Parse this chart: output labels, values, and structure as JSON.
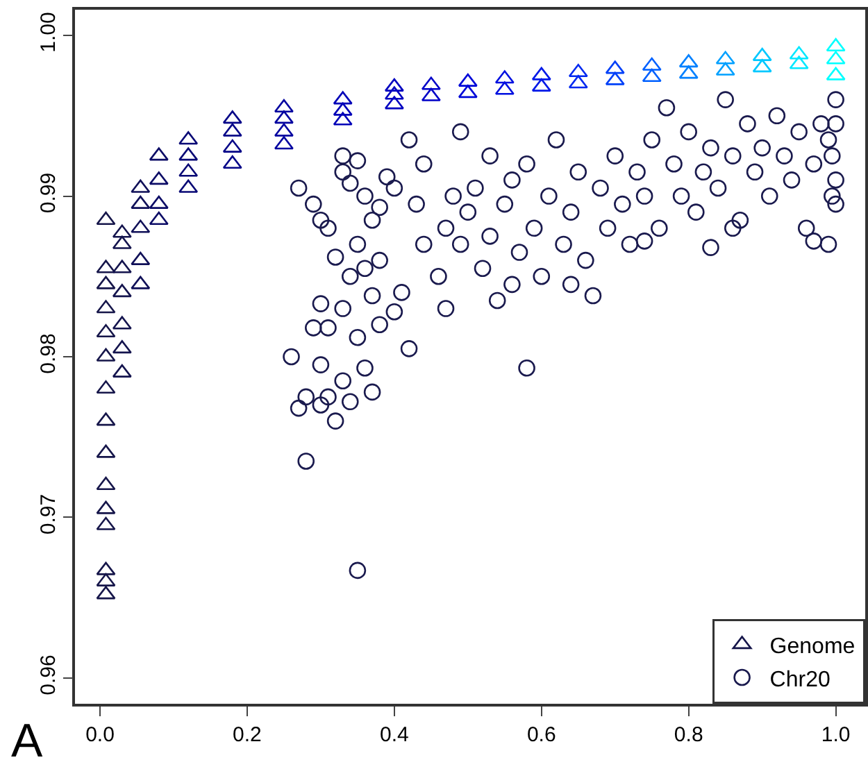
{
  "chart_data": {
    "type": "scatter",
    "annotations": [
      "A"
    ],
    "xlim": [
      -0.034,
      1.04
    ],
    "ylim": [
      0.9584,
      1.0016
    ],
    "xticks": [
      {
        "value": 0,
        "label": "0.0"
      },
      {
        "value": 0.2,
        "label": "0.2"
      },
      {
        "value": 0.4,
        "label": "0.4"
      },
      {
        "value": 0.6,
        "label": "0.6"
      },
      {
        "value": 0.8,
        "label": "0.8"
      },
      {
        "value": 1,
        "label": "1.0"
      }
    ],
    "yticks": [
      {
        "value": 0.96,
        "label": "0.96"
      },
      {
        "value": 0.97,
        "label": "0.97"
      },
      {
        "value": 0.98,
        "label": "0.98"
      },
      {
        "value": 0.99,
        "label": "0.99"
      },
      {
        "value": 1,
        "label": "1.00"
      }
    ],
    "grid": false,
    "legend": "bottom right",
    "series": [
      {
        "name": "Genome",
        "marker": "triangle",
        "x": [
          0.008,
          0.008,
          0.008,
          0.008,
          0.008,
          0.008,
          0.008,
          0.008,
          0.008,
          0.008,
          0.008,
          0.008,
          0.008,
          0.008,
          0.008,
          0.03,
          0.03,
          0.03,
          0.03,
          0.03,
          0.03,
          0.03,
          0.055,
          0.055,
          0.055,
          0.055,
          0.055,
          0.08,
          0.08,
          0.08,
          0.08,
          0.12,
          0.12,
          0.12,
          0.12,
          0.18,
          0.18,
          0.18,
          0.18,
          0.25,
          0.25,
          0.25,
          0.25,
          0.33,
          0.33,
          0.33,
          0.4,
          0.4,
          0.4,
          0.45,
          0.45,
          0.5,
          0.5,
          0.55,
          0.55,
          0.6,
          0.6,
          0.65,
          0.65,
          0.7,
          0.7,
          0.75,
          0.75,
          0.8,
          0.8,
          0.85,
          0.85,
          0.9,
          0.9,
          0.95,
          0.95,
          1,
          1,
          1
        ],
        "values": [
          0.9652,
          0.966,
          0.9667,
          0.9695,
          0.9705,
          0.972,
          0.974,
          0.976,
          0.978,
          0.98,
          0.9815,
          0.983,
          0.9845,
          0.9855,
          0.9885,
          0.979,
          0.9805,
          0.982,
          0.984,
          0.9855,
          0.987,
          0.9877,
          0.9845,
          0.986,
          0.988,
          0.9895,
          0.9905,
          0.9885,
          0.9895,
          0.991,
          0.9925,
          0.9905,
          0.9915,
          0.9925,
          0.9935,
          0.992,
          0.993,
          0.994,
          0.9948,
          0.9932,
          0.994,
          0.9948,
          0.9955,
          0.9947,
          0.9953,
          0.996,
          0.9957,
          0.9963,
          0.9968,
          0.9962,
          0.9969,
          0.9964,
          0.9971,
          0.9966,
          0.9973,
          0.9968,
          0.9975,
          0.997,
          0.9977,
          0.9972,
          0.9979,
          0.9974,
          0.9981,
          0.9976,
          0.9983,
          0.9978,
          0.9985,
          0.998,
          0.9987,
          0.9982,
          0.9988,
          0.9975,
          0.9985,
          0.9993
        ],
        "colors": [
          "#16164a",
          "#16164a",
          "#16164a",
          "#16164a",
          "#16164a",
          "#16164a",
          "#16164a",
          "#16164a",
          "#16164a",
          "#16164a",
          "#16164a",
          "#16164a",
          "#16164a",
          "#16164a",
          "#16164a",
          "#14144e",
          "#14144e",
          "#14144e",
          "#14144e",
          "#14144e",
          "#14144e",
          "#14144e",
          "#101058",
          "#101058",
          "#101058",
          "#101058",
          "#101058",
          "#0c0c66",
          "#0c0c66",
          "#0c0c66",
          "#0c0c66",
          "#080875",
          "#080875",
          "#080875",
          "#080875",
          "#060688",
          "#060688",
          "#060688",
          "#060688",
          "#0404a0",
          "#0404a0",
          "#0404a0",
          "#0404a0",
          "#0000b8",
          "#0000b8",
          "#0000b8",
          "#0000c0",
          "#0000c0",
          "#0000c0",
          "#0000c8",
          "#0000c8",
          "#0008d8",
          "#0008d8",
          "#0010e0",
          "#0010e0",
          "#0018e8",
          "#0018e8",
          "#0028f0",
          "#0028f0",
          "#0040f8",
          "#0040f8",
          "#0060ff",
          "#0060ff",
          "#0080ff",
          "#0080ff",
          "#00a0ff",
          "#00a0ff",
          "#00c8ff",
          "#00c8ff",
          "#00e8ff",
          "#00e8ff",
          "#00ffff",
          "#00ffff",
          "#00ffff"
        ]
      },
      {
        "name": "Chr20",
        "marker": "circle",
        "color": "#1a1a4e",
        "x": [
          0.27,
          0.29,
          0.3,
          0.31,
          0.33,
          0.33,
          0.34,
          0.35,
          0.36,
          0.37,
          0.35,
          0.38,
          0.39,
          0.4,
          0.32,
          0.34,
          0.36,
          0.38,
          0.3,
          0.33,
          0.37,
          0.4,
          0.29,
          0.31,
          0.35,
          0.38,
          0.26,
          0.3,
          0.33,
          0.36,
          0.28,
          0.3,
          0.31,
          0.34,
          0.37,
          0.27,
          0.32,
          0.28,
          0.35,
          0.42,
          0.41,
          0.44,
          0.43,
          0.44,
          0.42,
          0.46,
          0.47,
          0.48,
          0.49,
          0.5,
          0.51,
          0.52,
          0.53,
          0.54,
          0.55,
          0.56,
          0.57,
          0.58,
          0.58,
          0.59,
          0.6,
          0.61,
          0.62,
          0.63,
          0.64,
          0.65,
          0.66,
          0.67,
          0.68,
          0.69,
          0.7,
          0.71,
          0.72,
          0.73,
          0.74,
          0.75,
          0.76,
          0.77,
          0.78,
          0.79,
          0.8,
          0.81,
          0.82,
          0.83,
          0.84,
          0.85,
          0.86,
          0.87,
          0.88,
          0.89,
          0.9,
          0.91,
          0.92,
          0.93,
          0.94,
          0.95,
          0.96,
          0.97,
          0.98,
          0.99,
          0.995,
          0.995,
          1,
          1,
          1,
          1,
          0.99,
          0.49,
          0.53,
          0.47,
          0.56,
          0.64,
          0.74,
          0.86,
          0.97,
          0.83
        ],
        "values": [
          0.9905,
          0.9895,
          0.9885,
          0.988,
          0.9915,
          0.9925,
          0.9908,
          0.9922,
          0.99,
          0.9885,
          0.987,
          0.9893,
          0.9912,
          0.9905,
          0.9862,
          0.985,
          0.9855,
          0.986,
          0.9833,
          0.983,
          0.9838,
          0.9828,
          0.9818,
          0.9818,
          0.9812,
          0.982,
          0.98,
          0.9795,
          0.9785,
          0.9793,
          0.9775,
          0.977,
          0.9775,
          0.9772,
          0.9778,
          0.9768,
          0.976,
          0.9735,
          0.9667,
          0.9805,
          0.984,
          0.987,
          0.9895,
          0.992,
          0.9935,
          0.985,
          0.988,
          0.99,
          0.987,
          0.989,
          0.9905,
          0.9855,
          0.9875,
          0.9835,
          0.9895,
          0.991,
          0.9865,
          0.9793,
          0.992,
          0.988,
          0.985,
          0.99,
          0.9935,
          0.987,
          0.989,
          0.9915,
          0.986,
          0.9838,
          0.9905,
          0.988,
          0.9925,
          0.9895,
          0.987,
          0.9915,
          0.99,
          0.9935,
          0.988,
          0.9955,
          0.992,
          0.99,
          0.994,
          0.989,
          0.9915,
          0.993,
          0.9905,
          0.996,
          0.9925,
          0.9885,
          0.9945,
          0.9915,
          0.993,
          0.99,
          0.995,
          0.9925,
          0.991,
          0.994,
          0.988,
          0.992,
          0.9945,
          0.987,
          0.99,
          0.9925,
          0.9945,
          0.996,
          0.9895,
          0.991,
          0.9935,
          0.994,
          0.9925,
          0.983,
          0.9845,
          0.9845,
          0.9872,
          0.988,
          0.9872,
          0.9868
        ]
      }
    ]
  }
}
